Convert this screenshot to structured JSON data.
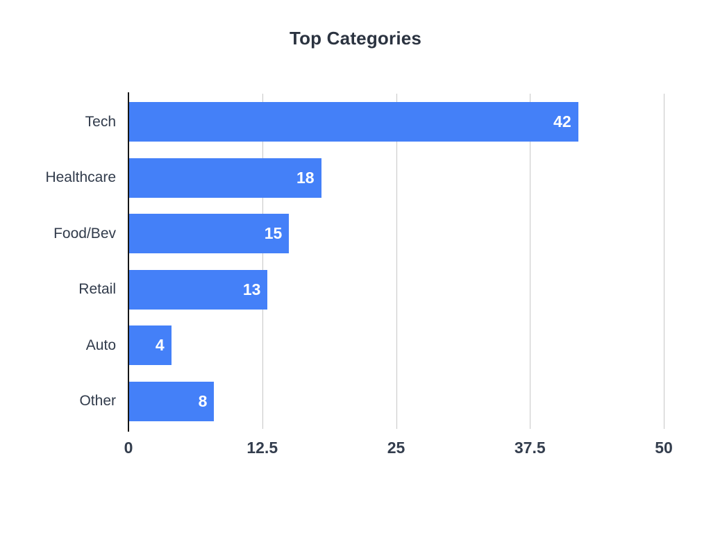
{
  "title": "Top Categories",
  "colors": {
    "background": "#ffffff",
    "bar": "#4480f8",
    "title": "#2b3340",
    "category_label": "#313b4b",
    "tick_label": "#333d4d",
    "gridline": "#c7c7c7",
    "axis_line": "#151515",
    "value_label": "#ffffff"
  },
  "chart_data": {
    "type": "bar",
    "orientation": "horizontal",
    "title": "Top Categories",
    "categories": [
      "Tech",
      "Healthcare",
      "Food/Bev",
      "Retail",
      "Auto",
      "Other"
    ],
    "values": [
      42,
      18,
      15,
      13,
      4,
      8
    ],
    "value_labels": [
      "42",
      "18",
      "15",
      "13",
      "4",
      "8"
    ],
    "value_label_position": "inside-end",
    "xlabel": "",
    "ylabel": "",
    "xlim": [
      0,
      50
    ],
    "xticks": [
      0,
      12.5,
      25,
      37.5,
      50
    ],
    "xtick_labels": [
      "0",
      "12.5",
      "25",
      "37.5",
      "50"
    ],
    "grid": true,
    "grid_axis": "x",
    "legend": false
  }
}
